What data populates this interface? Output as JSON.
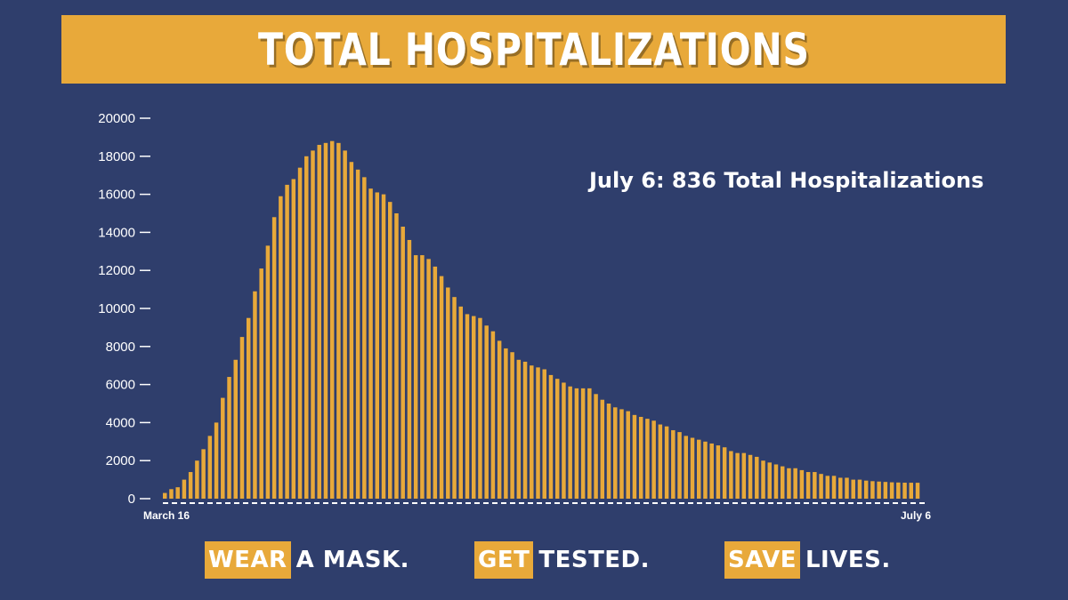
{
  "title": "TOTAL HOSPITALIZATIONS",
  "annotation": "July 6: 836 Total Hospitalizations",
  "colors": {
    "background": "#2f3e6c",
    "accent": "#e8a93a",
    "text": "#ffffff"
  },
  "footer": [
    {
      "highlight": "WEAR",
      "rest": "A MASK."
    },
    {
      "highlight": "GET",
      "rest": "TESTED."
    },
    {
      "highlight": "SAVE",
      "rest": "LIVES."
    }
  ],
  "chart_data": {
    "type": "bar",
    "x_start_label": "March 16",
    "x_end_label": "July 6",
    "ylim": [
      0,
      20000
    ],
    "yticks": [
      "0",
      "2000",
      "4000",
      "6000",
      "8000",
      "10000",
      "12000",
      "14000",
      "16000",
      "18000",
      "20000"
    ],
    "values": [
      300,
      500,
      600,
      1000,
      1400,
      2000,
      2600,
      3300,
      4000,
      5300,
      6400,
      7300,
      8500,
      9500,
      10900,
      12100,
      13300,
      14800,
      15900,
      16500,
      16800,
      17400,
      18000,
      18300,
      18600,
      18700,
      18800,
      18700,
      18300,
      17700,
      17300,
      16900,
      16300,
      16100,
      16000,
      15600,
      15000,
      14300,
      13600,
      12800,
      12800,
      12600,
      12200,
      11700,
      11100,
      10600,
      10100,
      9700,
      9600,
      9500,
      9100,
      8800,
      8300,
      7900,
      7700,
      7300,
      7200,
      7000,
      6900,
      6800,
      6500,
      6300,
      6100,
      5900,
      5800,
      5800,
      5800,
      5500,
      5200,
      5000,
      4800,
      4700,
      4600,
      4400,
      4300,
      4200,
      4100,
      3900,
      3800,
      3600,
      3500,
      3300,
      3200,
      3100,
      3000,
      2900,
      2800,
      2700,
      2500,
      2400,
      2400,
      2300,
      2200,
      2000,
      1900,
      1800,
      1700,
      1600,
      1600,
      1500,
      1400,
      1400,
      1300,
      1200,
      1200,
      1100,
      1100,
      1000,
      1000,
      950,
      920,
      900,
      880,
      860,
      850,
      840,
      838,
      836
    ]
  }
}
